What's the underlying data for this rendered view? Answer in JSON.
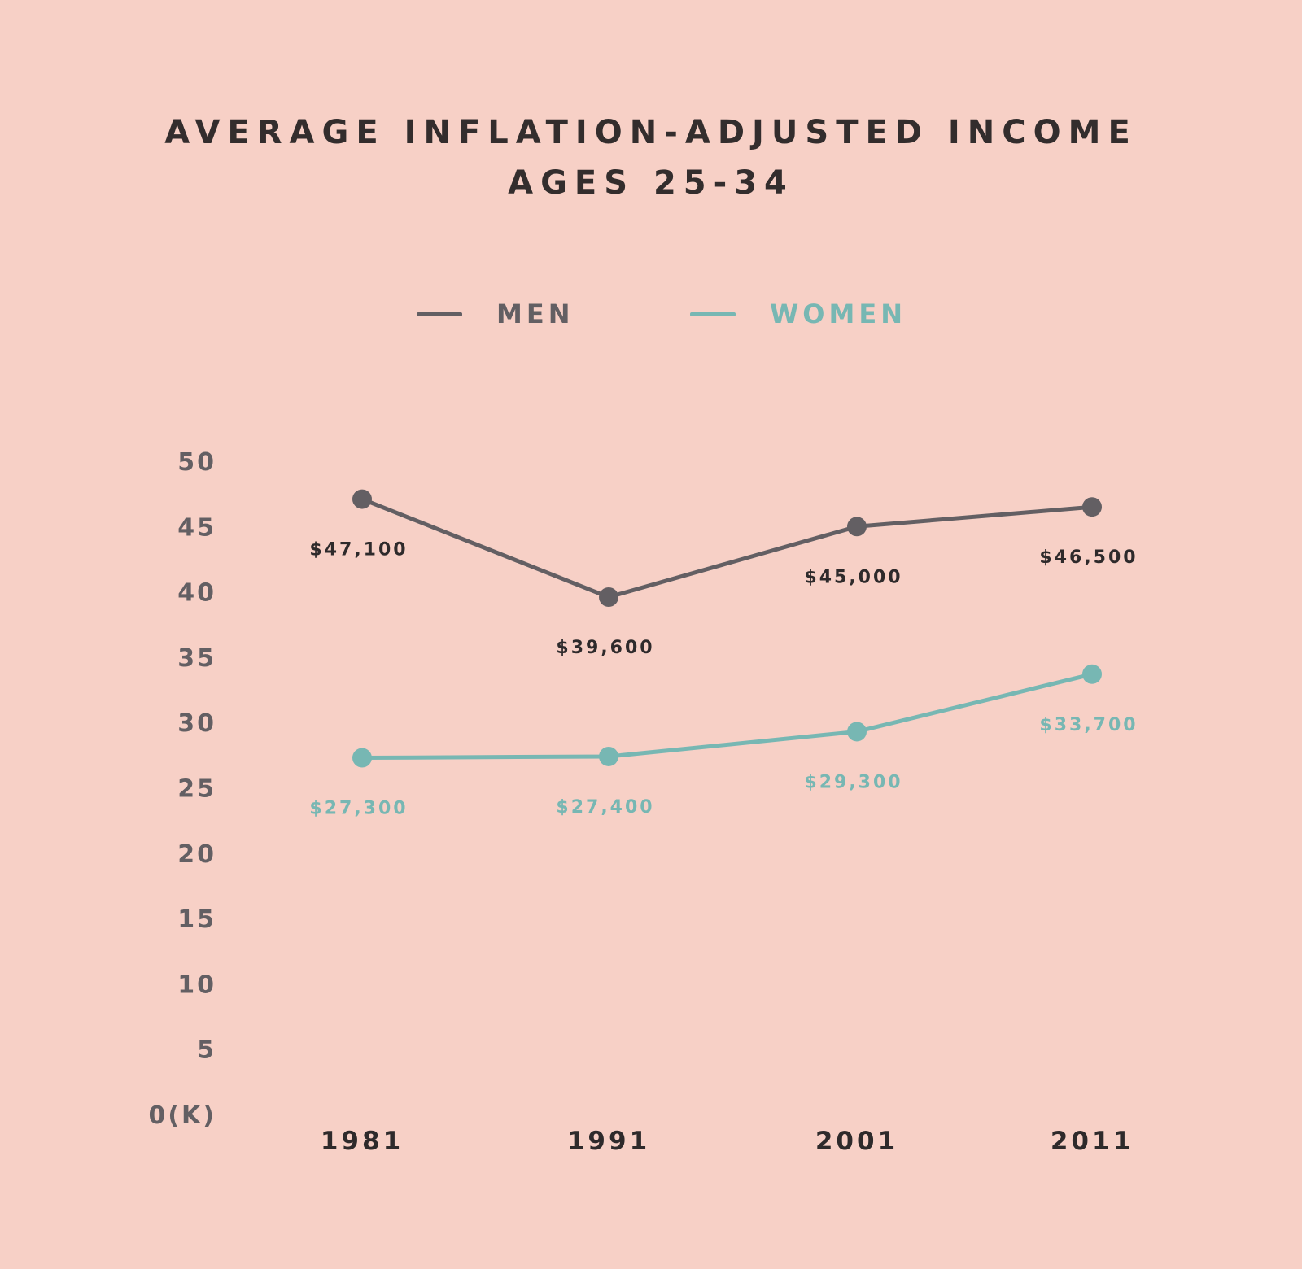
{
  "chart_data": {
    "type": "line",
    "title": "AVERAGE INFLATION-ADJUSTED INCOME",
    "subtitle": "AGES 25-34",
    "xlabel": "",
    "ylabel": "",
    "categories": [
      "1981",
      "1991",
      "2001",
      "2011"
    ],
    "y_ticks": [
      "0(K)",
      "5",
      "10",
      "15",
      "20",
      "25",
      "30",
      "35",
      "40",
      "45",
      "50"
    ],
    "ylim": [
      0,
      50
    ],
    "grid": false,
    "legend_position": "top-center",
    "series": [
      {
        "name": "MEN",
        "color": "#635f63",
        "label_color": "#2e2a2b",
        "values": [
          47.1,
          39.6,
          45.0,
          46.5
        ],
        "labels": [
          "$47,100",
          "$39,600",
          "$45,000",
          "$46,500"
        ]
      },
      {
        "name": "WOMEN",
        "color": "#77b7b3",
        "label_color": "#77b7b3",
        "values": [
          27.3,
          27.4,
          29.3,
          33.7
        ],
        "labels": [
          "$27,300",
          "$27,400",
          "$29,300",
          "$33,700"
        ]
      }
    ]
  }
}
